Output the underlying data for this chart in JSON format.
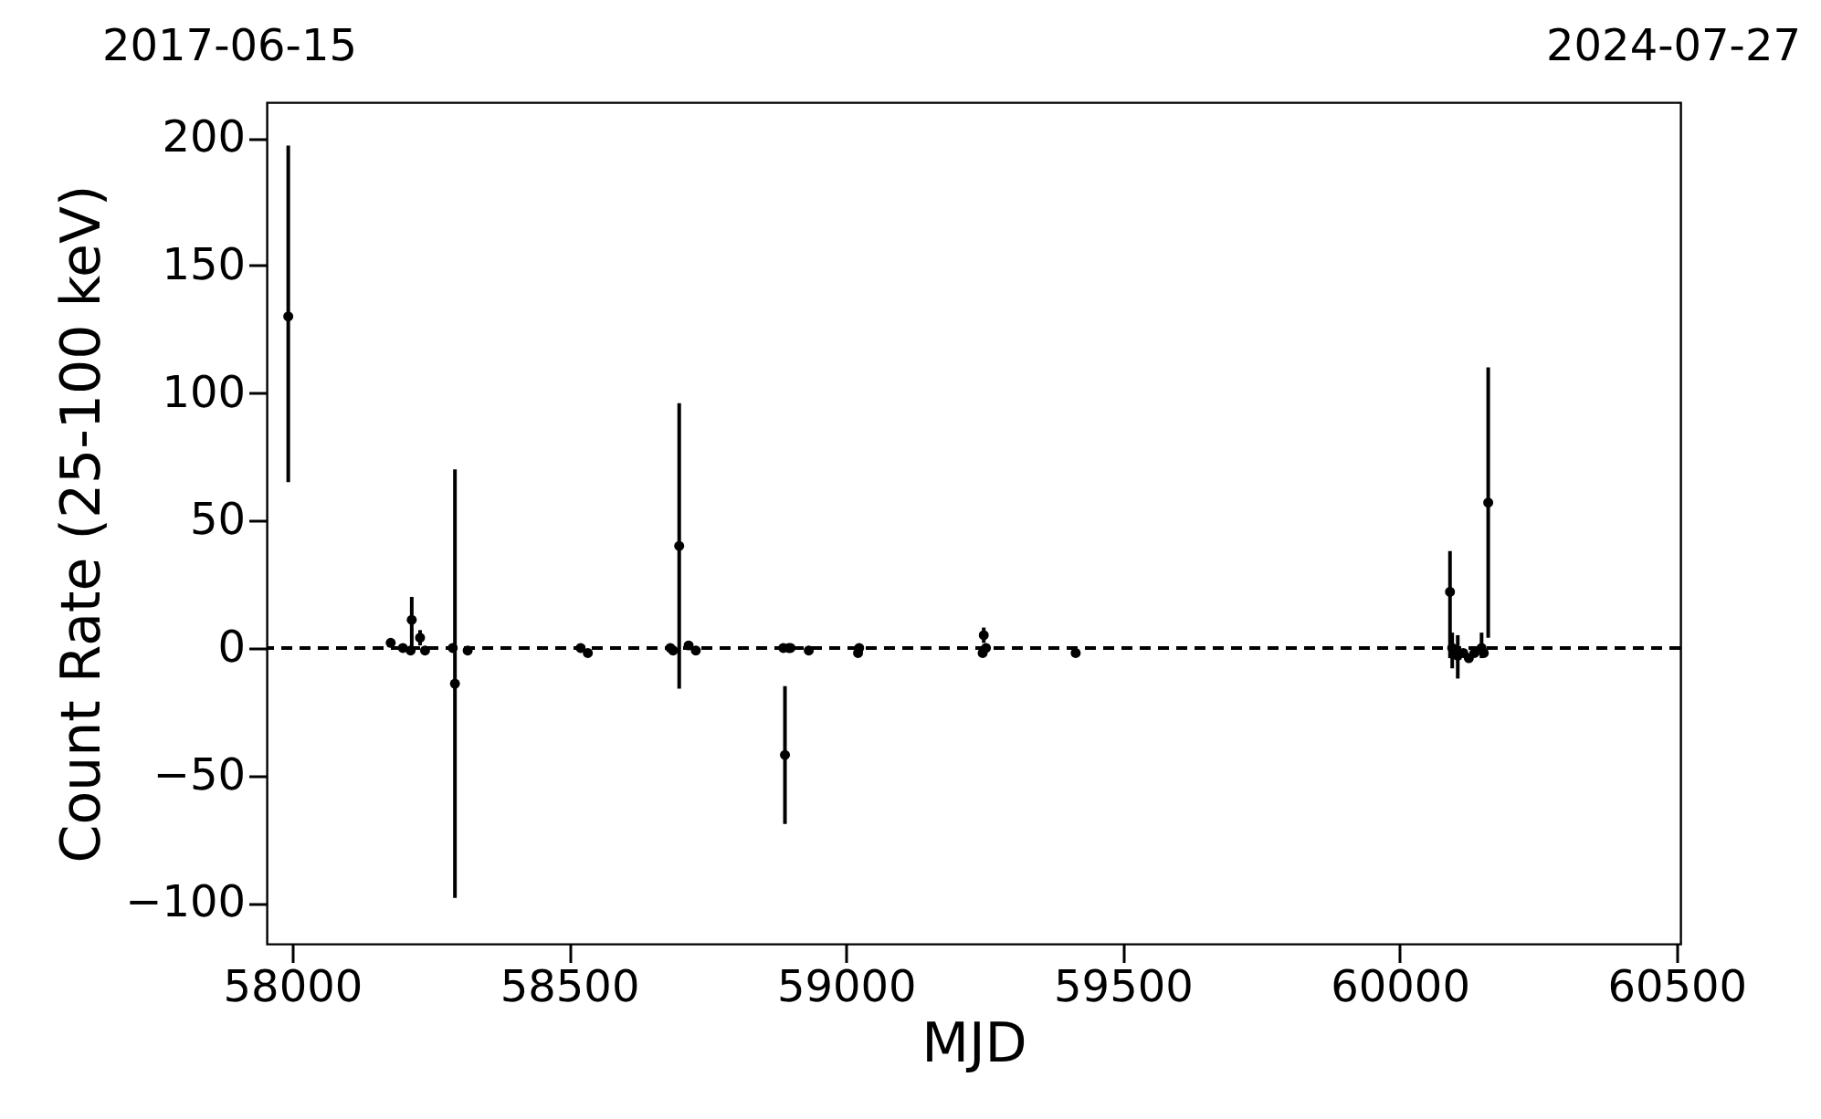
{
  "chart_data": {
    "type": "scatter",
    "xlabel": "MJD",
    "ylabel": "Count Rate (25-100 keV)",
    "annotations": [
      "2017-06-15",
      "2024-07-27"
    ],
    "x": [
      57993,
      58178,
      58200,
      58214,
      58216,
      58231,
      58240,
      58290,
      58294,
      58317,
      58521,
      58534,
      58683,
      58688,
      58699,
      58716,
      58729,
      58887,
      58890,
      58897,
      58900,
      58933,
      59022,
      59024,
      59247,
      59249,
      59253,
      59415,
      60091,
      60095,
      60105,
      60115,
      60125,
      60135,
      60148,
      60152,
      60160
    ],
    "series": [
      {
        "color": "#000000",
        "values": [
          130,
          2,
          0,
          -1,
          11,
          4,
          -1,
          0,
          -14,
          -1,
          0,
          -2,
          0,
          -1,
          40,
          1,
          -1,
          0,
          -42,
          0,
          0,
          -1,
          -2,
          0,
          -2,
          5,
          0,
          -2,
          22,
          0,
          -3,
          -2,
          -4,
          -2,
          0,
          -2,
          57
        ],
        "errors": [
          [
            65,
            197
          ],
          null,
          null,
          null,
          [
            0,
            20
          ],
          [
            1,
            7
          ],
          null,
          null,
          [
            -98,
            70
          ],
          null,
          null,
          null,
          null,
          null,
          [
            -16,
            96
          ],
          null,
          null,
          null,
          [
            -69,
            -15
          ],
          null,
          null,
          null,
          null,
          null,
          null,
          [
            2,
            8
          ],
          null,
          null,
          [
            -4,
            38
          ],
          [
            -8,
            6
          ],
          [
            -12,
            5
          ],
          null,
          null,
          null,
          [
            -4,
            6
          ],
          null,
          [
            4,
            110
          ]
        ]
      }
    ],
    "xlim": [
      57954,
      60507
    ],
    "xticks": [
      58000,
      58500,
      59000,
      59500,
      60000,
      60500
    ],
    "ylim": [
      -116,
      214
    ],
    "yticks": [
      -100,
      -50,
      0,
      50,
      100,
      150,
      200
    ],
    "ref_lines": [
      {
        "axis": "y",
        "value": 0,
        "color": "#000000",
        "line_style": "dashed"
      }
    ],
    "grid": false,
    "marker": "circle"
  }
}
